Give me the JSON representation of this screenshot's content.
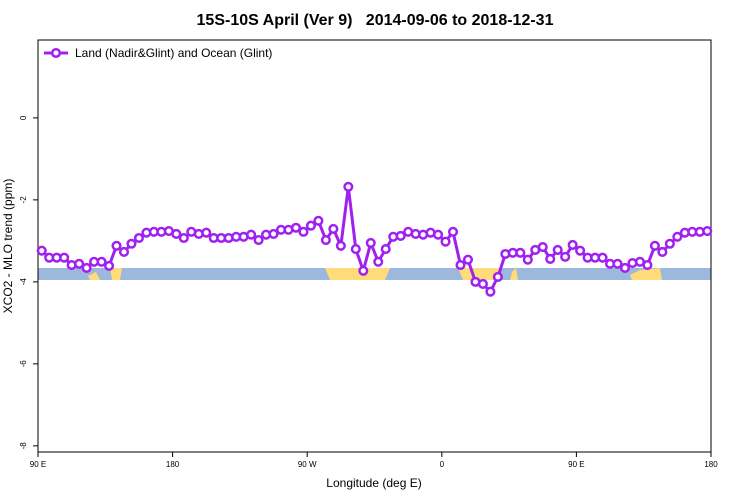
{
  "chart_data": {
    "type": "line",
    "title": "15S-10S April (Ver 9)   2014-09-06 to 2018-12-31",
    "x_label": "Longitude (deg E)",
    "y_label": "XCO2 - MLO trend (ppm)",
    "xlim": [
      90,
      540
    ],
    "xticks": [
      {
        "value": 90,
        "label": "90 E"
      },
      180,
      {
        "value": 270,
        "label": "90 W"
      },
      {
        "value": 360,
        "label": "0"
      },
      {
        "value": 450,
        "label": "90 E"
      },
      {
        "value": 540,
        "label": "180"
      }
    ],
    "ylim": [
      -8.15,
      1.9
    ],
    "yticks": [
      0,
      -2,
      -4,
      -6,
      -8
    ],
    "legend": "top-left",
    "x": [
      92.5,
      97.5,
      102.5,
      107.5,
      112.5,
      117.5,
      122.5,
      127.5,
      132.5,
      137.5,
      142.5,
      147.5,
      152.5,
      157.5,
      162.5,
      167.5,
      172.5,
      177.5,
      182.5,
      187.5,
      192.5,
      197.5,
      202.5,
      207.5,
      212.5,
      217.5,
      222.5,
      227.5,
      232.5,
      237.5,
      242.5,
      247.5,
      252.5,
      257.5,
      262.5,
      267.5,
      272.5,
      277.5,
      282.5,
      287.5,
      292.5,
      297.5,
      302.5,
      307.5,
      312.5,
      317.5,
      322.5,
      327.5,
      332.5,
      337.5,
      342.5,
      347.5,
      352.5,
      357.5,
      362.5,
      367.5,
      372.5,
      377.5,
      382.5,
      387.5,
      392.5,
      397.5,
      402.5,
      407.5,
      412.5,
      417.5,
      422.5,
      427.5,
      432.5,
      437.5,
      442.5,
      447.5,
      452.5,
      457.5,
      462.5,
      467.5,
      472.5,
      477.5,
      482.5,
      487.5,
      492.5,
      497.5,
      502.5,
      507.5,
      512.5,
      517.5,
      522.5,
      527.5,
      532.5,
      537.5
    ],
    "series": [
      {
        "name": "Land (Nadir&Glint) and Ocean (Glint)",
        "color": "#a020f0",
        "values": [
          -3.24,
          -3.41,
          -3.41,
          -3.41,
          -3.59,
          -3.56,
          -3.66,
          -3.51,
          -3.51,
          -3.61,
          -3.12,
          -3.27,
          -3.07,
          -2.93,
          -2.8,
          -2.78,
          -2.78,
          -2.76,
          -2.83,
          -2.93,
          -2.78,
          -2.83,
          -2.8,
          -2.93,
          -2.93,
          -2.93,
          -2.9,
          -2.9,
          -2.85,
          -2.98,
          -2.85,
          -2.83,
          -2.73,
          -2.73,
          -2.68,
          -2.78,
          -2.63,
          -2.51,
          -2.98,
          -2.71,
          -3.12,
          -1.68,
          -3.2,
          -3.73,
          -3.05,
          -3.51,
          -3.2,
          -2.9,
          -2.88,
          -2.78,
          -2.83,
          -2.85,
          -2.8,
          -2.85,
          -3.02,
          -2.78,
          -3.59,
          -3.46,
          -4.0,
          -4.05,
          -4.24,
          -3.88,
          -3.32,
          -3.29,
          -3.29,
          -3.46,
          -3.22,
          -3.15,
          -3.44,
          -3.22,
          -3.39,
          -3.1,
          -3.24,
          -3.41,
          -3.41,
          -3.41,
          -3.56,
          -3.56,
          -3.66,
          -3.54,
          -3.51,
          -3.59,
          -3.12,
          -3.27,
          -3.07,
          -2.9,
          -2.8,
          -2.78,
          -2.78,
          -2.76
        ]
      }
    ]
  }
}
